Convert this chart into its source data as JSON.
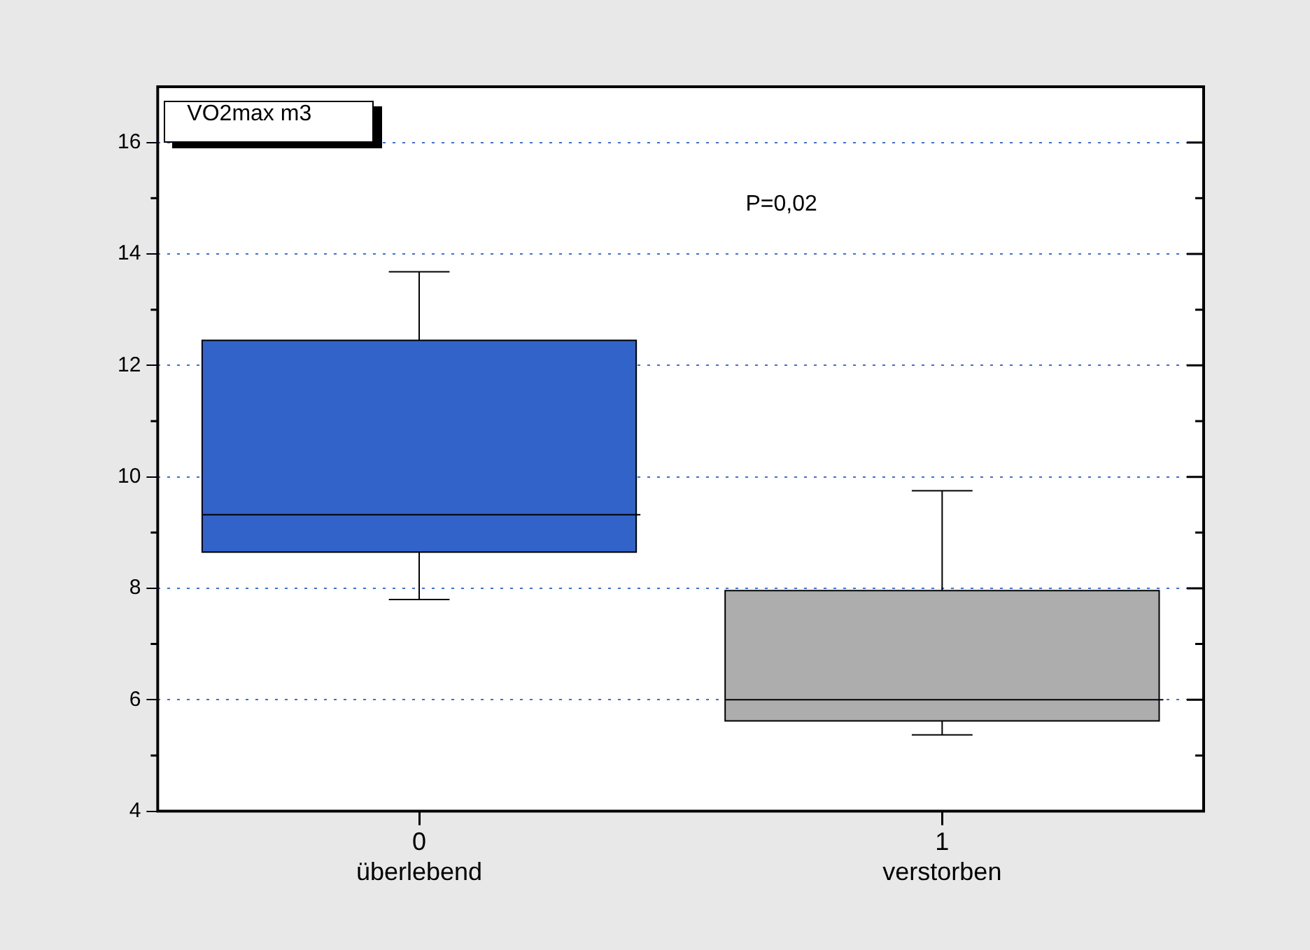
{
  "chart_data": {
    "type": "box",
    "categories": [
      "0\nüberlebend",
      "1\nverstorben"
    ],
    "boxes": [
      {
        "low": 7.8,
        "q1": 8.65,
        "median": 9.32,
        "q3": 12.45,
        "high": 13.68
      },
      {
        "low": 5.37,
        "q1": 5.62,
        "median": 6.0,
        "q3": 7.96,
        "high": 9.75
      }
    ],
    "colors": [
      "#3163c9",
      "#adadad"
    ],
    "ylim": [
      4,
      17
    ],
    "yticks": [
      4,
      6,
      8,
      10,
      12,
      14,
      16
    ],
    "grid": "y",
    "annotations": [
      "VO2max m3",
      "P=0,02"
    ]
  }
}
